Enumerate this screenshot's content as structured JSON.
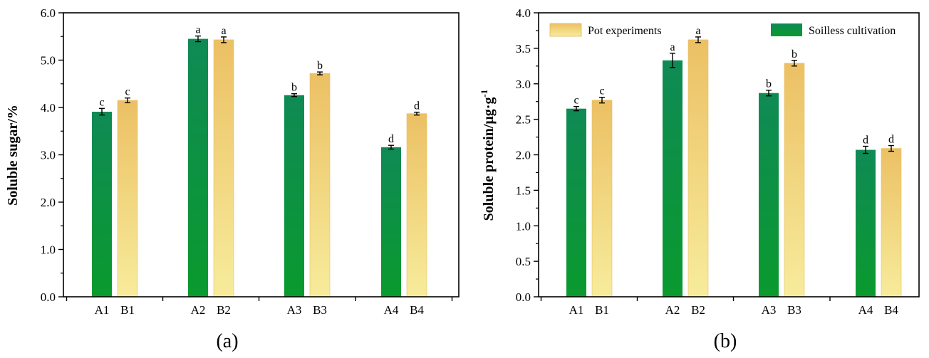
{
  "colors": {
    "soilless_top": "#0f8a55",
    "soilless_bottom": "#0a9a2e",
    "pot_top": "#ecc064",
    "pot_bottom": "#f7ec9c",
    "axis": "#000000"
  },
  "chart_data": [
    {
      "type": "bar",
      "panel": "(a)",
      "ylabel": "Soluble sugar/%",
      "ylim": [
        0,
        6
      ],
      "yticks": [
        "0.0",
        "1.0",
        "2.0",
        "3.0",
        "4.0",
        "5.0",
        "6.0"
      ],
      "groups": [
        "1",
        "2",
        "3",
        "4"
      ],
      "bars": [
        {
          "label": "A1",
          "series": "Soilless cultivation",
          "value": 3.91,
          "error": 0.07,
          "sig": "c"
        },
        {
          "label": "B1",
          "series": "Pot experiments",
          "value": 4.15,
          "error": 0.05,
          "sig": "c"
        },
        {
          "label": "A2",
          "series": "Soilless cultivation",
          "value": 5.45,
          "error": 0.06,
          "sig": "a"
        },
        {
          "label": "B2",
          "series": "Pot experiments",
          "value": 5.43,
          "error": 0.06,
          "sig": "a"
        },
        {
          "label": "A3",
          "series": "Soilless cultivation",
          "value": 4.26,
          "error": 0.03,
          "sig": "b"
        },
        {
          "label": "B3",
          "series": "Pot experiments",
          "value": 4.72,
          "error": 0.03,
          "sig": "b"
        },
        {
          "label": "A4",
          "series": "Soilless cultivation",
          "value": 3.16,
          "error": 0.04,
          "sig": "d"
        },
        {
          "label": "B4",
          "series": "Pot experiments",
          "value": 3.87,
          "error": 0.03,
          "sig": "d"
        }
      ]
    },
    {
      "type": "bar",
      "panel": "(b)",
      "ylabel_main": "Soluble protein/μg·g",
      "ylabel_sup": "-1",
      "ylim": [
        0,
        4
      ],
      "yticks": [
        "0.0",
        "0.5",
        "1.0",
        "1.5",
        "2.0",
        "2.5",
        "3.0",
        "3.5",
        "4.0"
      ],
      "legend": [
        {
          "name": "Pot experiments",
          "series": "Pot experiments"
        },
        {
          "name": "Soilless cultivation",
          "series": "Soilless cultivation"
        }
      ],
      "legend_position": "top",
      "bars": [
        {
          "label": "A1",
          "series": "Soilless cultivation",
          "value": 2.65,
          "error": 0.03,
          "sig": "c"
        },
        {
          "label": "B1",
          "series": "Pot experiments",
          "value": 2.77,
          "error": 0.04,
          "sig": "c"
        },
        {
          "label": "A2",
          "series": "Soilless cultivation",
          "value": 3.33,
          "error": 0.1,
          "sig": "a"
        },
        {
          "label": "B2",
          "series": "Pot experiments",
          "value": 3.62,
          "error": 0.04,
          "sig": "a"
        },
        {
          "label": "A3",
          "series": "Soilless cultivation",
          "value": 2.87,
          "error": 0.04,
          "sig": "b"
        },
        {
          "label": "B3",
          "series": "Pot experiments",
          "value": 3.29,
          "error": 0.04,
          "sig": "b"
        },
        {
          "label": "A4",
          "series": "Soilless cultivation",
          "value": 2.07,
          "error": 0.05,
          "sig": "d"
        },
        {
          "label": "B4",
          "series": "Pot experiments",
          "value": 2.09,
          "error": 0.04,
          "sig": "d"
        }
      ]
    }
  ]
}
